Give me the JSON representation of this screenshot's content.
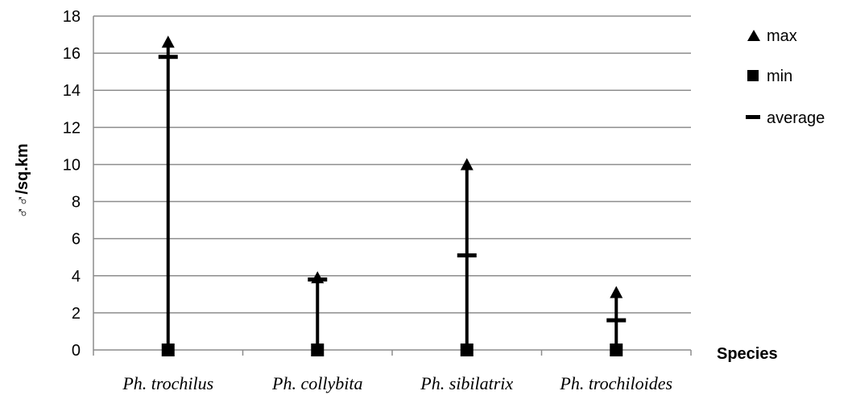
{
  "chart_data": {
    "type": "range",
    "categories": [
      "Ph. trochilus",
      "Ph. collybita",
      "Ph. sibilatrix",
      "Ph. trochiloides"
    ],
    "series": [
      {
        "name": "max",
        "values": [
          16.6,
          3.9,
          10.0,
          3.1
        ]
      },
      {
        "name": "min",
        "values": [
          0,
          0,
          0,
          0
        ]
      },
      {
        "name": "average",
        "values": [
          15.8,
          3.8,
          5.1,
          1.6
        ]
      }
    ],
    "ylabel": "♂♂/sq.km",
    "xlabel": "Species",
    "ylim": [
      0,
      18
    ],
    "yticks": [
      0,
      2,
      4,
      6,
      8,
      10,
      12,
      14,
      16,
      18
    ],
    "grid": true,
    "legend_position": "right"
  }
}
